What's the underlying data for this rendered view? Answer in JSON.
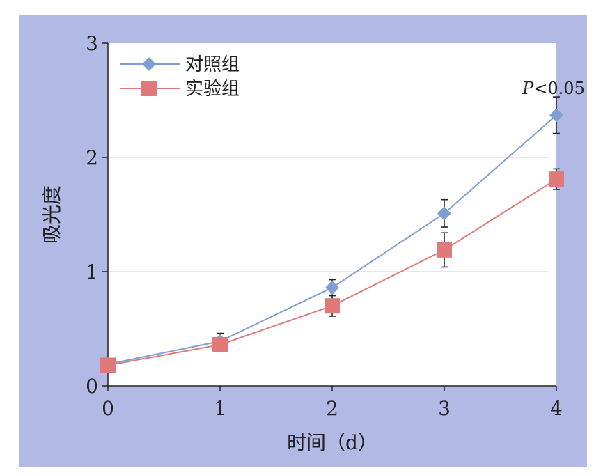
{
  "chart_data": {
    "type": "line",
    "xlabel": "时间（d）",
    "ylabel": "吸光度",
    "x": [
      0,
      1,
      2,
      3,
      4
    ],
    "xlim": [
      0,
      4
    ],
    "ylim": [
      0,
      3
    ],
    "xticks": [
      "0",
      "1",
      "2",
      "3",
      "4"
    ],
    "yticks": [
      "0",
      "1",
      "2",
      "3"
    ],
    "grid": "horizontal",
    "legend_position": "top-left",
    "series": [
      {
        "name": "对照组",
        "marker": "diamond",
        "color": "#7f9fd4",
        "values": [
          0.19,
          0.39,
          0.86,
          1.51,
          2.37
        ],
        "error": [
          0.02,
          0.07,
          0.07,
          0.12,
          0.16
        ]
      },
      {
        "name": "实验组",
        "marker": "square",
        "color": "#e07a7a",
        "values": [
          0.18,
          0.36,
          0.7,
          1.19,
          1.81
        ],
        "error": [
          0.02,
          0.06,
          0.09,
          0.15,
          0.09
        ]
      }
    ],
    "annotations": [
      {
        "x": 4,
        "text": "P<0.05"
      }
    ]
  }
}
